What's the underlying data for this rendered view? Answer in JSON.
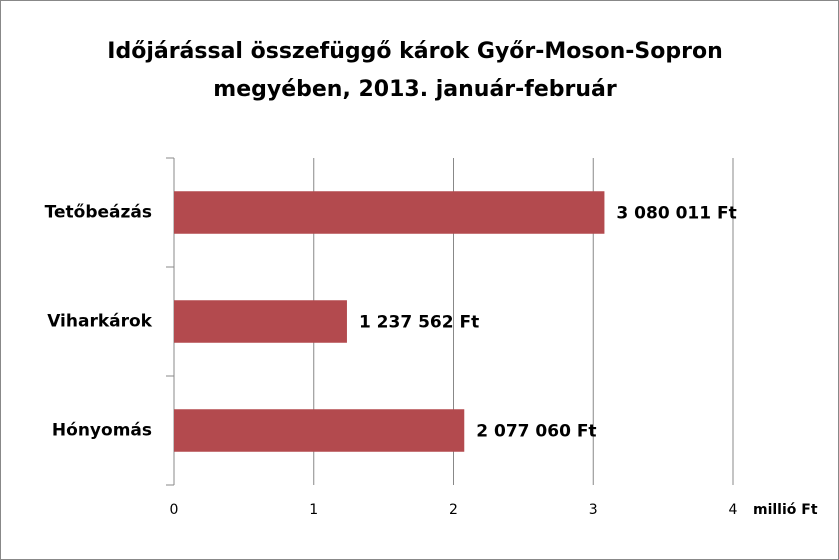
{
  "chart_data": {
    "type": "bar",
    "orientation": "horizontal",
    "title": [
      "Időjárással összefüggő károk Győr-Moson-Sopron",
      "megyében, 2013. január-február"
    ],
    "x_label": "millió Ft",
    "categories": [
      "Tetőbeázás",
      "Viharkárok",
      "Hónyomás"
    ],
    "values": [
      3.080011,
      1.237562,
      2.07706
    ],
    "value_labels": [
      "3 080 011 Ft",
      "1 237 562 Ft",
      "2 077 060 Ft"
    ],
    "color": "#b34a4e",
    "xlim": [
      0,
      4
    ],
    "xticks": [
      0,
      1,
      2,
      3,
      4
    ],
    "grid": true
  }
}
